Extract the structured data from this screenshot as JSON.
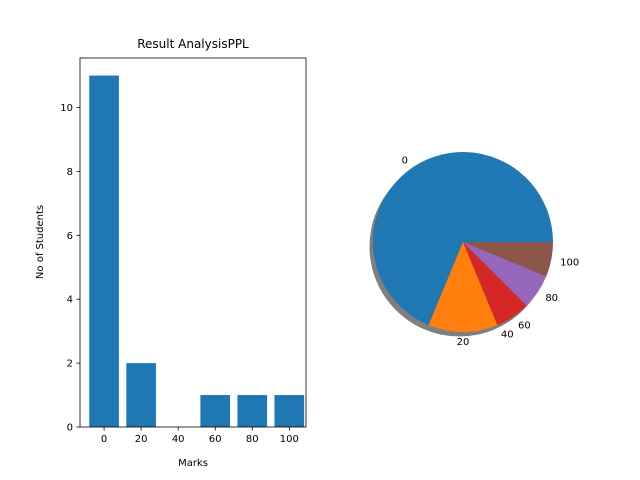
{
  "chart_data": [
    {
      "type": "bar",
      "title": "Result AnalysisPPL",
      "xlabel": "Marks",
      "ylabel": "No of Students",
      "categories": [
        "0",
        "20",
        "40",
        "60",
        "80",
        "100"
      ],
      "values": [
        11,
        2,
        0,
        1,
        1,
        1
      ],
      "ylim": [
        0,
        11.55
      ],
      "yticks": [
        "0",
        "2",
        "4",
        "6",
        "8",
        "10"
      ],
      "bar_color": "#1f77b4",
      "grid": false
    },
    {
      "type": "pie",
      "labels": [
        "0",
        "20",
        "40",
        "60",
        "80",
        "100"
      ],
      "values": [
        11,
        2,
        0,
        1,
        1,
        1
      ],
      "colors": [
        "#1f77b4",
        "#ff7f0e",
        "#2ca02c",
        "#d62728",
        "#9467bd",
        "#8c564b"
      ],
      "shadow": true
    }
  ]
}
